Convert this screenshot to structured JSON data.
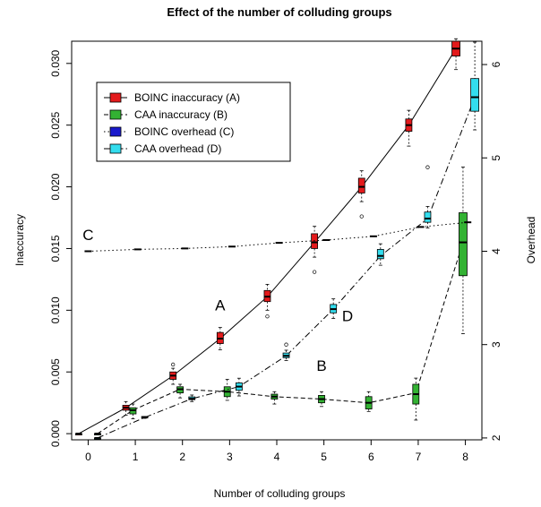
{
  "chart_data": {
    "type": "line",
    "title": "Effect of the number of colluding groups",
    "xlabel": "Number of colluding groups",
    "ylabel": "Inaccuracy",
    "y2label": "Overhead",
    "x_ticks": [
      0,
      1,
      2,
      3,
      4,
      5,
      6,
      7,
      8
    ],
    "xlim": [
      -0.35,
      8.35
    ],
    "y_ticks": [
      "0.000",
      "0.005",
      "0.010",
      "0.015",
      "0.020",
      "0.025",
      "0.030"
    ],
    "ylim": [
      -0.0005,
      0.0318
    ],
    "y2_ticks": [
      2,
      3,
      4,
      5,
      6
    ],
    "y2lim": [
      1.98,
      6.25
    ],
    "grid": false,
    "legend_position": "top-left",
    "legend": [
      {
        "label": "BOINC inaccuracy (A)",
        "color": "#e31a1c",
        "dash": "solid"
      },
      {
        "label": "CAA inaccuracy (B)",
        "color": "#33b233",
        "dash": "dashed"
      },
      {
        "label": "BOINC overhead (C)",
        "color": "#1a1acc",
        "dash": "dotted"
      },
      {
        "label": "CAA overhead (D)",
        "color": "#33ddee",
        "dash": "dashdot"
      }
    ],
    "series": [
      {
        "name": "BOINC inaccuracy (A)",
        "axis": "left",
        "color": "#e31a1c",
        "dash": "solid",
        "x": [
          -0.2,
          0.8,
          1.8,
          2.8,
          3.8,
          4.8,
          5.8,
          6.8,
          7.8
        ],
        "y": [
          0.0,
          0.0021,
          0.0047,
          0.0077,
          0.0111,
          0.0155,
          0.02,
          0.025,
          0.0312
        ],
        "boxes": [
          [
            0.0,
            0.0,
            0.0,
            0.0,
            0.0
          ],
          [
            0.0015,
            0.0019,
            0.0021,
            0.0023,
            0.0026
          ],
          [
            0.004,
            0.0044,
            0.0047,
            0.005,
            0.0053
          ],
          [
            0.0068,
            0.0073,
            0.0077,
            0.0082,
            0.0086
          ],
          [
            0.01,
            0.0107,
            0.0111,
            0.0116,
            0.0121
          ],
          [
            0.0143,
            0.015,
            0.0155,
            0.0162,
            0.0168
          ],
          [
            0.0188,
            0.0195,
            0.02,
            0.0207,
            0.0213
          ],
          [
            0.0233,
            0.0245,
            0.025,
            0.0255,
            0.0262
          ],
          [
            0.0295,
            0.0306,
            0.0312,
            0.0318,
            0.032
          ]
        ],
        "outliers": [
          [
            1.8,
            0.0056
          ],
          [
            3.8,
            0.0095
          ],
          [
            4.8,
            0.0131
          ],
          [
            5.8,
            0.0176
          ]
        ]
      },
      {
        "name": "CAA inaccuracy (B)",
        "axis": "left",
        "color": "#33b233",
        "dash": "dashed",
        "x": [
          0.2,
          0.95,
          1.95,
          2.95,
          3.95,
          4.95,
          5.95,
          6.95,
          7.95
        ],
        "y": [
          0.0,
          0.0019,
          0.0036,
          0.0034,
          0.003,
          0.0028,
          0.0025,
          0.0033,
          0.0155
        ],
        "boxes": [
          [
            0.0,
            0.0,
            0.0,
            0.0,
            0.0
          ],
          [
            0.0012,
            0.0016,
            0.0019,
            0.0021,
            0.0024
          ],
          [
            0.0029,
            0.0033,
            0.0036,
            0.0038,
            0.004
          ],
          [
            0.0027,
            0.003,
            0.0034,
            0.0038,
            0.0044
          ],
          [
            0.0024,
            0.0028,
            0.003,
            0.0032,
            0.0034
          ],
          [
            0.0022,
            0.0025,
            0.0028,
            0.0031,
            0.0034
          ],
          [
            0.0018,
            0.002,
            0.0025,
            0.003,
            0.0034
          ],
          [
            0.0011,
            0.0024,
            0.0032,
            0.004,
            0.0045
          ],
          [
            0.0081,
            0.0128,
            0.0155,
            0.0179,
            0.0216
          ]
        ],
        "outliers": []
      },
      {
        "name": "BOINC overhead (C)",
        "axis": "right",
        "color": "#1a1acc",
        "dash": "dotted",
        "x": [
          0.0,
          1.05,
          2.05,
          3.05,
          4.05,
          5.05,
          6.05,
          7.05,
          8.05
        ],
        "y": [
          4.0,
          4.02,
          4.03,
          4.05,
          4.09,
          4.12,
          4.16,
          4.26,
          4.31
        ],
        "boxes": [],
        "outliers": []
      },
      {
        "name": "CAA overhead (D)",
        "axis": "right",
        "color": "#33ddee",
        "dash": "dashdot",
        "x": [
          0.2,
          1.2,
          2.2,
          3.2,
          4.2,
          5.2,
          6.2,
          7.2,
          8.2
        ],
        "y": [
          2.0,
          2.22,
          2.42,
          2.55,
          2.88,
          3.38,
          3.95,
          4.35,
          5.65
        ],
        "boxes": [
          [
            2.0,
            2.0,
            2.0,
            2.0,
            2.0
          ],
          [
            2.21,
            2.22,
            2.22,
            2.23,
            2.23
          ],
          [
            2.39,
            2.41,
            2.42,
            2.44,
            2.46
          ],
          [
            2.45,
            2.51,
            2.55,
            2.59,
            2.64
          ],
          [
            2.83,
            2.86,
            2.88,
            2.91,
            2.94
          ],
          [
            3.28,
            3.34,
            3.38,
            3.43,
            3.49
          ],
          [
            3.85,
            3.92,
            3.95,
            4.02,
            4.08
          ],
          [
            4.25,
            4.31,
            4.35,
            4.42,
            4.48
          ],
          [
            5.3,
            5.5,
            5.65,
            5.85,
            6.24
          ]
        ],
        "outliers": [
          [
            4.2,
            3.0
          ],
          [
            7.2,
            4.9
          ]
        ]
      }
    ],
    "annotations": [
      {
        "text": "C",
        "x": 0.0,
        "y": 0.0157,
        "axis": "left"
      },
      {
        "text": "A",
        "x": 2.8,
        "y": 0.01,
        "axis": "left"
      },
      {
        "text": "D",
        "x": 5.5,
        "y": 0.0091,
        "axis": "left"
      },
      {
        "text": "B",
        "x": 4.95,
        "y": 0.0051,
        "axis": "left"
      }
    ]
  }
}
